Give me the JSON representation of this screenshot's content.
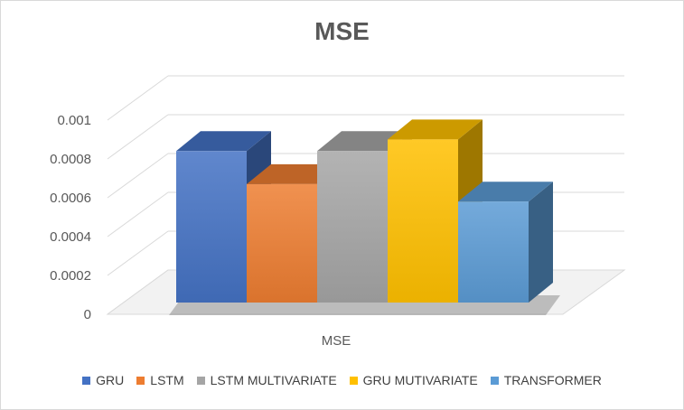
{
  "chart_data": {
    "type": "bar",
    "title": "MSE",
    "categories": [
      "MSE"
    ],
    "series": [
      {
        "name": "GRU",
        "values": [
          0.00078
        ],
        "color": "#4472C4"
      },
      {
        "name": "LSTM",
        "values": [
          0.00061
        ],
        "color": "#ED7D31"
      },
      {
        "name": "LSTM MULTIVARIATE",
        "values": [
          0.00078
        ],
        "color": "#A5A5A5"
      },
      {
        "name": "GRU MUTIVARIATE",
        "values": [
          0.00084
        ],
        "color": "#FFC000"
      },
      {
        "name": "TRANSFORMER",
        "values": [
          0.00052
        ],
        "color": "#5B9BD5"
      }
    ],
    "yticks": [
      "0",
      "0.0002",
      "0.0004",
      "0.0006",
      "0.0008",
      "0.001"
    ],
    "ylim": [
      0,
      0.001
    ],
    "xlabel": "",
    "ylabel": "",
    "grid": true,
    "legend_position": "bottom",
    "style": "3d-clustered-column"
  }
}
